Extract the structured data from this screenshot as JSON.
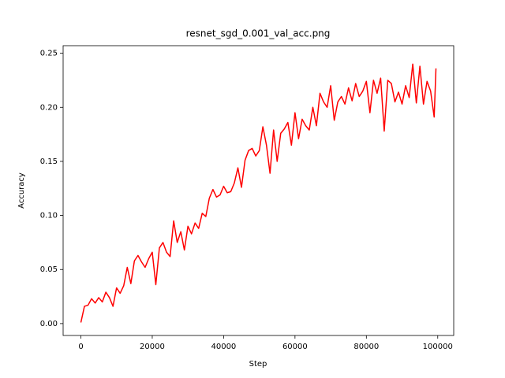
{
  "chart_data": {
    "type": "line",
    "title": "resnet_sgd_0.001_val_acc.png",
    "x_label": "Step",
    "y_label": "Accuracy",
    "x": [
      0,
      1000,
      2000,
      3000,
      4000,
      5000,
      6000,
      7000,
      8000,
      9000,
      10000,
      11000,
      12000,
      13000,
      14000,
      15000,
      16000,
      17000,
      18000,
      19000,
      20000,
      21000,
      22000,
      23000,
      24000,
      25000,
      26000,
      27000,
      28000,
      29000,
      30000,
      31000,
      32000,
      33000,
      34000,
      35000,
      36000,
      37000,
      38000,
      39000,
      40000,
      41000,
      42000,
      43000,
      44000,
      45000,
      46000,
      47000,
      48000,
      49000,
      50000,
      51000,
      52000,
      53000,
      54000,
      55000,
      56000,
      57000,
      58000,
      59000,
      60000,
      61000,
      62000,
      63000,
      64000,
      65000,
      66000,
      67000,
      68000,
      69000,
      70000,
      71000,
      72000,
      73000,
      74000,
      75000,
      76000,
      77000,
      78000,
      79000,
      80000,
      81000,
      82000,
      83000,
      84000,
      85000,
      86000,
      87000,
      88000,
      89000,
      90000,
      91000,
      92000,
      93000,
      94000,
      95000,
      96000,
      97000,
      98000,
      99000,
      99500
    ],
    "series": [
      {
        "color": "#ff0000",
        "values": [
          0.001,
          0.016,
          0.017,
          0.023,
          0.019,
          0.024,
          0.02,
          0.029,
          0.024,
          0.016,
          0.033,
          0.028,
          0.035,
          0.052,
          0.037,
          0.058,
          0.063,
          0.057,
          0.052,
          0.06,
          0.066,
          0.036,
          0.07,
          0.075,
          0.066,
          0.062,
          0.095,
          0.075,
          0.085,
          0.068,
          0.09,
          0.083,
          0.093,
          0.088,
          0.102,
          0.099,
          0.116,
          0.124,
          0.117,
          0.119,
          0.127,
          0.121,
          0.122,
          0.13,
          0.144,
          0.126,
          0.151,
          0.16,
          0.162,
          0.155,
          0.16,
          0.182,
          0.165,
          0.139,
          0.179,
          0.15,
          0.176,
          0.18,
          0.186,
          0.165,
          0.195,
          0.171,
          0.189,
          0.183,
          0.179,
          0.2,
          0.183,
          0.213,
          0.205,
          0.2,
          0.22,
          0.188,
          0.205,
          0.21,
          0.203,
          0.218,
          0.206,
          0.222,
          0.21,
          0.215,
          0.224,
          0.195,
          0.225,
          0.213,
          0.227,
          0.178,
          0.225,
          0.222,
          0.205,
          0.214,
          0.203,
          0.22,
          0.209,
          0.24,
          0.204,
          0.238,
          0.203,
          0.224,
          0.215,
          0.191,
          0.236
        ]
      }
    ],
    "xlim": [
      -4975,
      104475
    ],
    "ylim": [
      -0.011,
      0.257
    ],
    "xticks": [
      0,
      20000,
      40000,
      60000,
      80000,
      100000
    ],
    "yticks": [
      {
        "value": 0,
        "label": "0.00"
      },
      0.05,
      {
        "value": 0.1,
        "label": "0.10"
      },
      0.15,
      {
        "value": 0.2,
        "label": "0.20"
      },
      0.25
    ]
  }
}
